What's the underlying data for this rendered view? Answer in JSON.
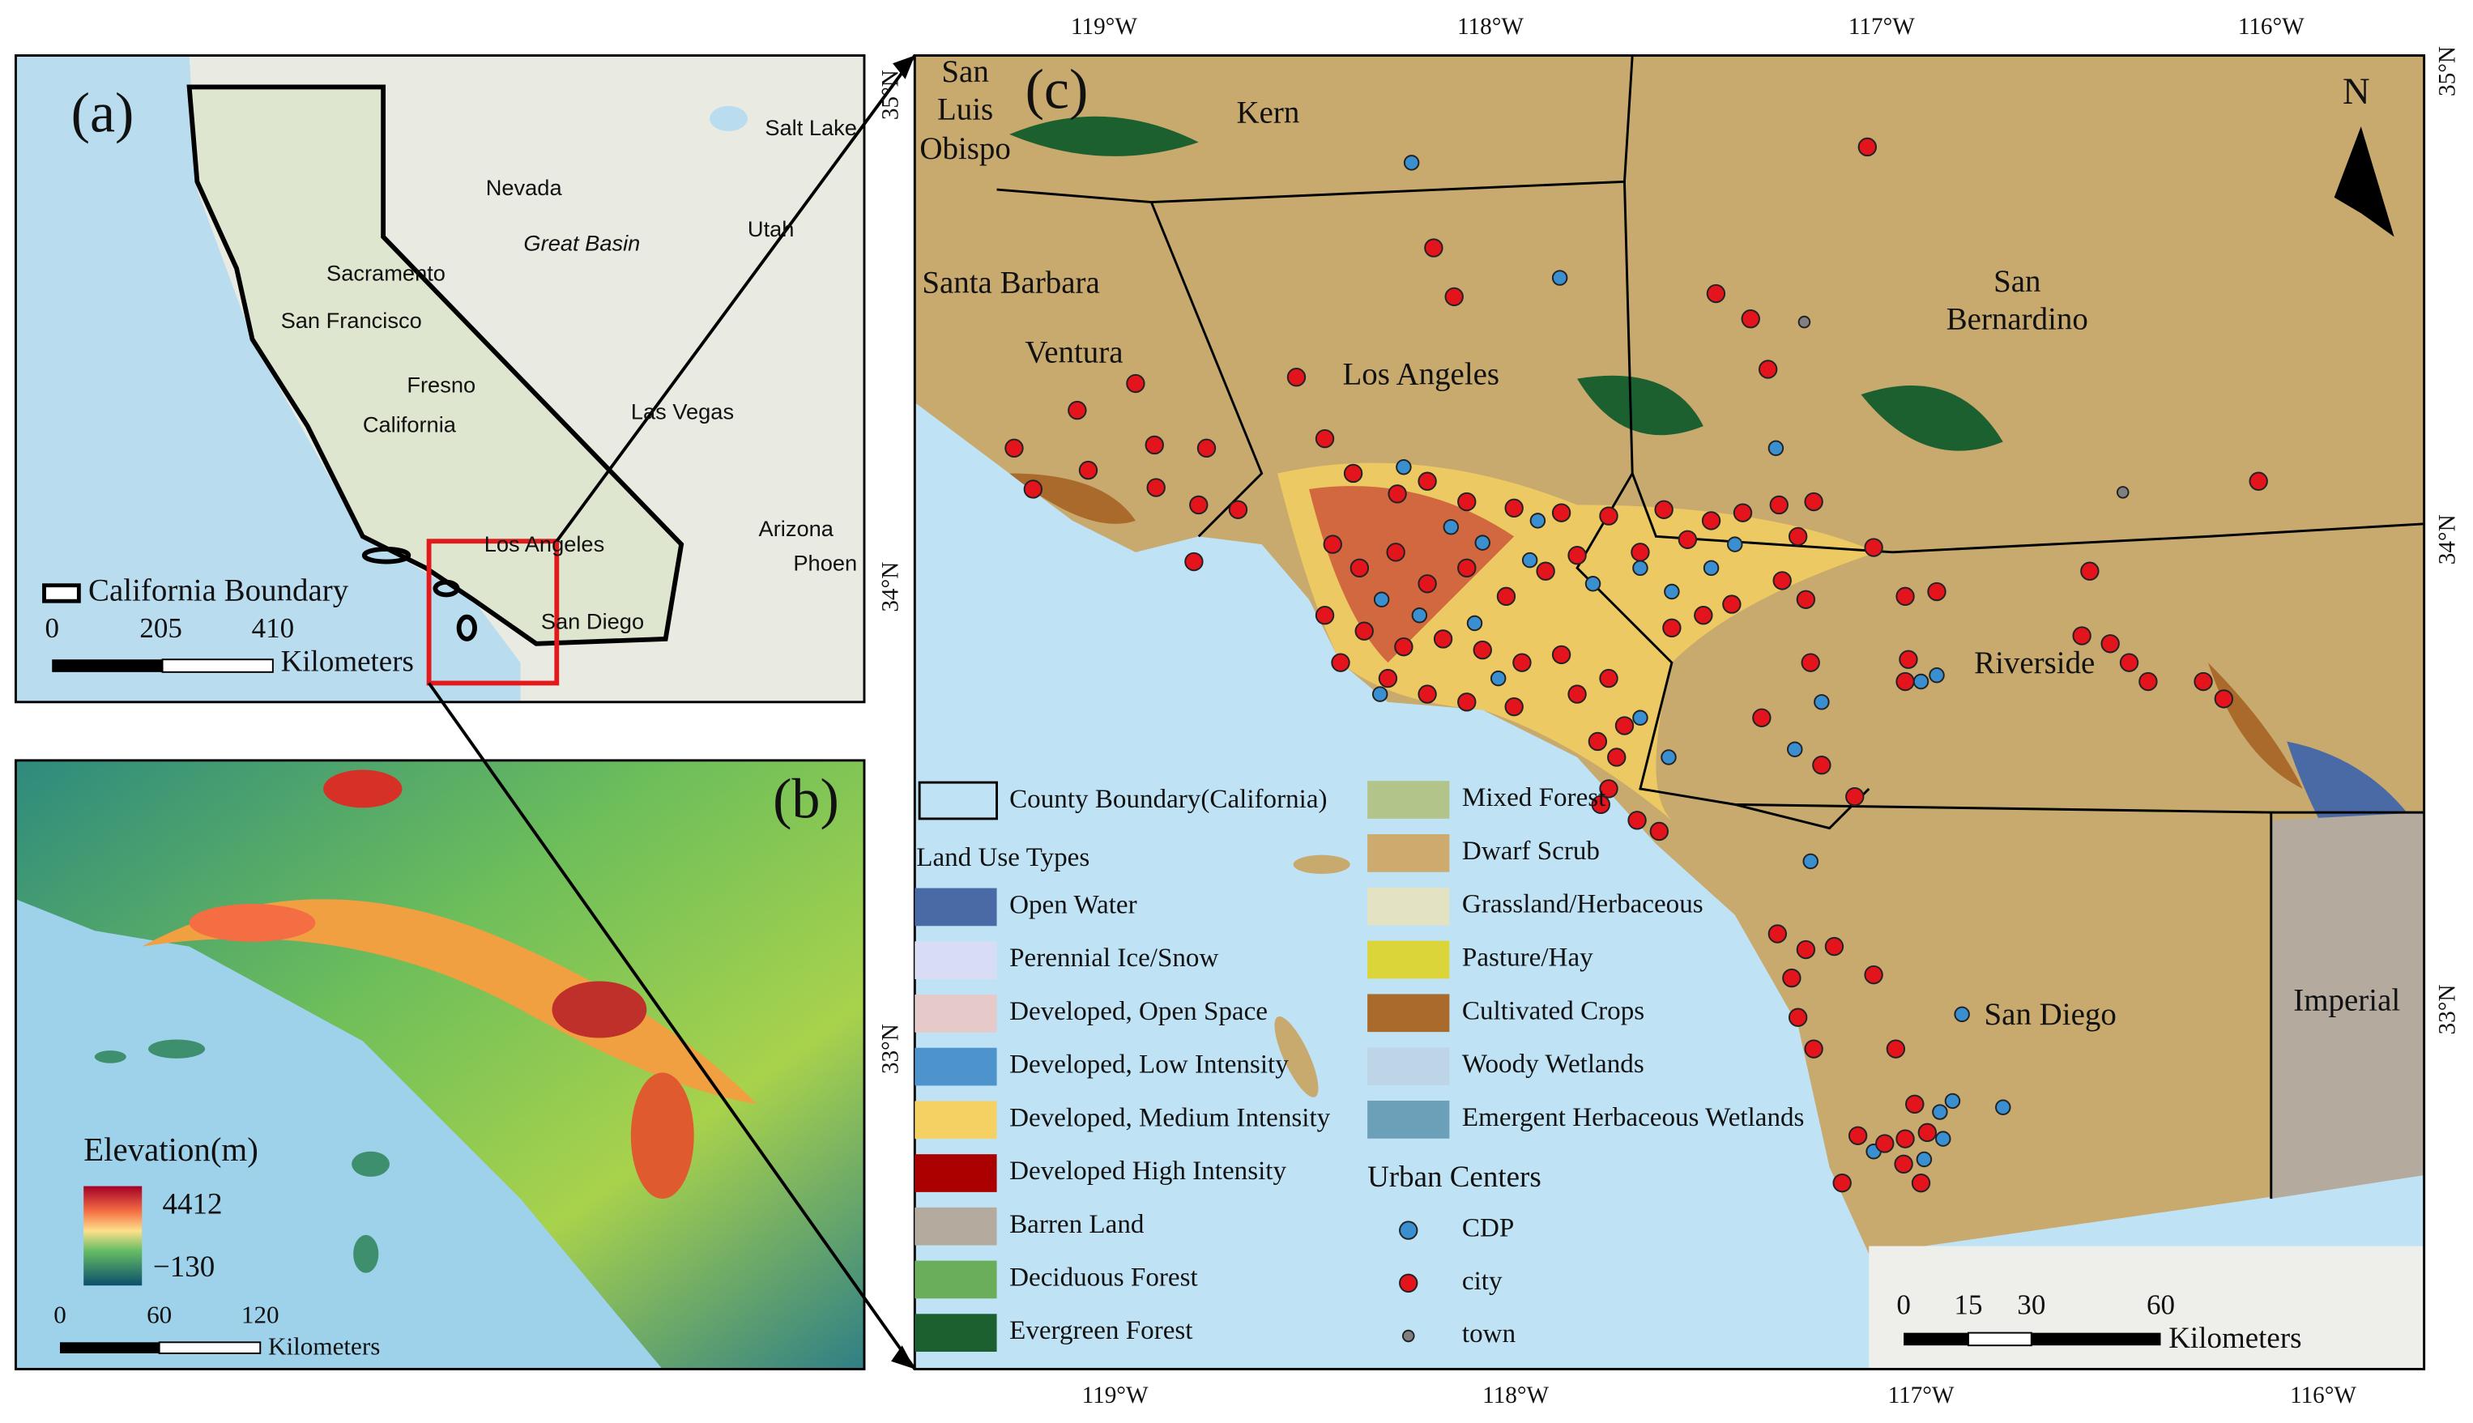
{
  "panel_a": {
    "label": "(a)",
    "places": [
      "Salt Lake",
      "Nevada",
      "Great Basin",
      "Utah",
      "Sacramento",
      "San Francisco",
      "Fresno",
      "California",
      "Las Vegas",
      "Arizona",
      "Phoen",
      "Los Angeles",
      "San Diego"
    ],
    "legend": "California Boundary",
    "scale": [
      "0",
      "205",
      "410"
    ],
    "unit": "Kilometers"
  },
  "panel_b": {
    "label": "(b)",
    "legend_title": "Elevation(m)",
    "max_label": "4412",
    "min_label": "−130",
    "scale": [
      "0",
      "60",
      "120"
    ],
    "unit": "Kilometers"
  },
  "panel_c": {
    "label": "(c)",
    "north": "N",
    "counties": [
      "Kern",
      "Santa Barbara",
      "Ventura",
      "Los Angeles",
      "Riverside",
      "San Diego",
      "Imperial"
    ],
    "san_luis_obispo": [
      "San",
      "Luis",
      "Obispo"
    ],
    "san_bernardino": [
      "San",
      "Bernardino"
    ],
    "lon_labels": [
      "119°W",
      "118°W",
      "117°W",
      "116°W"
    ],
    "lat_labels": [
      "35°N",
      "34°N",
      "33°N"
    ],
    "county_boundary": "County Boundary(California)",
    "land_use_title": "Land Use Types",
    "land_use": [
      {
        "label": "Open Water",
        "color": "#4a6aa5"
      },
      {
        "label": "Perennial Ice/Snow",
        "color": "#d9dcf5"
      },
      {
        "label": "Developed, Open Space",
        "color": "#e6c9c9"
      },
      {
        "label": "Developed, Low Intensity",
        "color": "#4d93cc"
      },
      {
        "label": "Developed, Medium Intensity",
        "color": "#f5d063"
      },
      {
        "label": "Developed High Intensity",
        "color": "#aa0000"
      },
      {
        "label": "Barren Land",
        "color": "#b5aa9e"
      },
      {
        "label": "Deciduous Forest",
        "color": "#6aad5a"
      },
      {
        "label": "Evergreen Forest",
        "color": "#1c6030"
      },
      {
        "label": "Mixed Forest",
        "color": "#b3c48b"
      },
      {
        "label": "Dwarf Scrub",
        "color": "#cdaa6d"
      },
      {
        "label": "Grassland/Herbaceous",
        "color": "#e3e2c3"
      },
      {
        "label": "Pasture/Hay",
        "color": "#dcd53a"
      },
      {
        "label": "Cultivated Crops",
        "color": "#aa6a2c"
      },
      {
        "label": "Woody Wetlands",
        "color": "#bdd5e7"
      },
      {
        "label": "Emergent Herbaceous Wetlands",
        "color": "#6c9fb8"
      }
    ],
    "urban_title": "Urban Centers",
    "urban": [
      {
        "label": "CDP",
        "color": "#3a8fd0"
      },
      {
        "label": "city",
        "color": "#e3141c"
      },
      {
        "label": "town",
        "color": "#808080"
      }
    ],
    "scale": [
      "0",
      "15",
      "30",
      "60"
    ],
    "unit": "Kilometers"
  }
}
